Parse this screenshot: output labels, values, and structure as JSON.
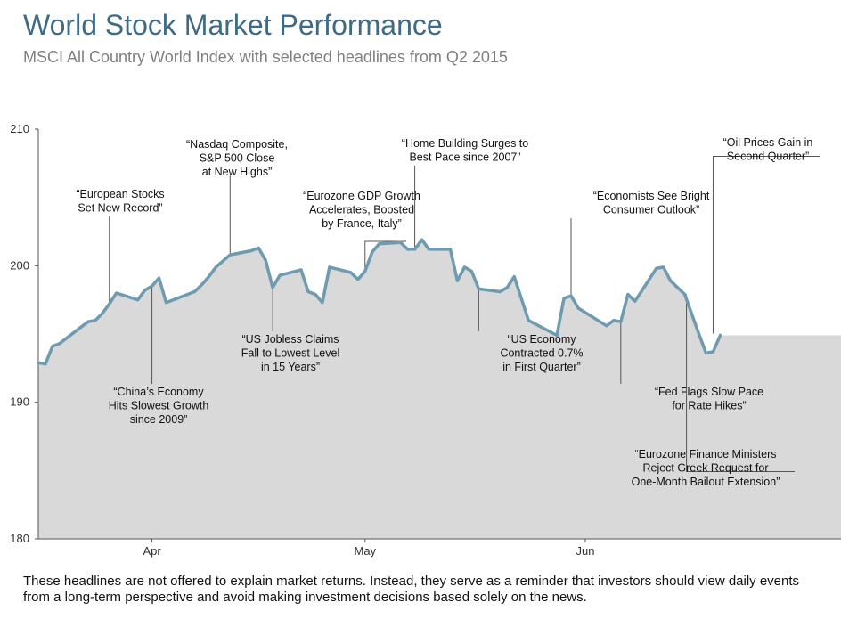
{
  "chart_data": {
    "type": "area",
    "title": "World Stock Market Performance",
    "subtitle": "MSCI All Country World Index with selected headlines from Q2 2015",
    "ylim": [
      180,
      210
    ],
    "yticks": [
      "210",
      "200",
      "190",
      "180"
    ],
    "xlim": [
      "2015-03-16",
      "2015-07-07"
    ],
    "xticks": [
      {
        "label": "Apr",
        "date": "2015-04-01"
      },
      {
        "label": "May",
        "date": "2015-05-01"
      },
      {
        "label": "Jun",
        "date": "2015-06-01"
      }
    ],
    "grid": false,
    "legend": "none",
    "colors": {
      "line": "#6e9bb0",
      "fill": "#d9d9d9",
      "axis": "#555555"
    },
    "series": [
      {
        "points": [
          [
            "2015-03-16",
            192.9
          ],
          [
            "2015-03-17",
            192.8
          ],
          [
            "2015-03-18",
            194.1
          ],
          [
            "2015-03-19",
            194.3
          ],
          [
            "2015-03-23",
            195.9
          ],
          [
            "2015-03-24",
            196.0
          ],
          [
            "2015-03-25",
            196.5
          ],
          [
            "2015-03-26",
            197.2
          ],
          [
            "2015-03-27",
            198.0
          ],
          [
            "2015-03-30",
            197.5
          ],
          [
            "2015-03-31",
            198.2
          ],
          [
            "2015-04-01",
            198.5
          ],
          [
            "2015-04-02",
            199.1
          ],
          [
            "2015-04-03",
            197.3
          ],
          [
            "2015-04-07",
            198.1
          ],
          [
            "2015-04-08",
            198.6
          ],
          [
            "2015-04-09",
            199.2
          ],
          [
            "2015-04-10",
            199.9
          ],
          [
            "2015-04-12",
            200.8
          ],
          [
            "2015-04-15",
            201.1
          ],
          [
            "2015-04-16",
            201.3
          ],
          [
            "2015-04-17",
            200.4
          ],
          [
            "2015-04-18",
            198.4
          ],
          [
            "2015-04-19",
            199.3
          ],
          [
            "2015-04-22",
            199.7
          ],
          [
            "2015-04-23",
            198.1
          ],
          [
            "2015-04-24",
            197.9
          ],
          [
            "2015-04-25",
            197.3
          ],
          [
            "2015-04-26",
            199.9
          ],
          [
            "2015-04-29",
            199.5
          ],
          [
            "2015-04-30",
            199.0
          ],
          [
            "2015-05-01",
            199.6
          ],
          [
            "2015-05-02",
            201.0
          ],
          [
            "2015-05-03",
            201.6
          ],
          [
            "2015-05-06",
            201.7
          ],
          [
            "2015-05-07",
            201.2
          ],
          [
            "2015-05-08",
            201.2
          ],
          [
            "2015-05-09",
            201.9
          ],
          [
            "2015-05-10",
            201.2
          ],
          [
            "2015-05-13",
            201.2
          ],
          [
            "2015-05-14",
            198.9
          ],
          [
            "2015-05-15",
            199.9
          ],
          [
            "2015-05-16",
            199.6
          ],
          [
            "2015-05-17",
            198.3
          ],
          [
            "2015-05-20",
            198.1
          ],
          [
            "2015-05-21",
            198.4
          ],
          [
            "2015-05-22",
            199.2
          ],
          [
            "2015-05-24",
            196.0
          ],
          [
            "2015-05-28",
            194.9
          ],
          [
            "2015-05-29",
            197.6
          ],
          [
            "2015-05-30",
            197.8
          ],
          [
            "2015-05-31",
            196.9
          ],
          [
            "2015-06-04",
            195.6
          ],
          [
            "2015-06-05",
            196.0
          ],
          [
            "2015-06-06",
            195.9
          ],
          [
            "2015-06-07",
            197.9
          ],
          [
            "2015-06-08",
            197.4
          ],
          [
            "2015-06-11",
            199.8
          ],
          [
            "2015-06-12",
            199.9
          ],
          [
            "2015-06-13",
            198.9
          ],
          [
            "2015-06-15",
            197.9
          ],
          [
            "2015-06-17",
            195.0
          ],
          [
            "2015-06-18",
            193.6
          ],
          [
            "2015-06-19",
            193.7
          ],
          [
            "2015-06-20",
            194.9
          ]
        ]
      }
    ],
    "annotations": [
      {
        "lines": [
          "“European Stocks",
          "Set New Record”"
        ],
        "date": "2015-03-26",
        "value": 197.2,
        "anchor": "below-text",
        "textX": 135,
        "textY": 222,
        "lineTop": 243
      },
      {
        "lines": [
          "“China’s Economy",
          "Hits Slowest Growth",
          "since 2009”"
        ],
        "date": "2015-04-01",
        "value": 198.5,
        "anchor": "above-text",
        "textX": 178,
        "textY": 444
      },
      {
        "lines": [
          "“Nasdaq Composite,",
          "S&P 500 Close",
          "at New Highs”"
        ],
        "date": "2015-04-12",
        "value": 200.8,
        "anchor": "below-text",
        "textX": 266,
        "textY": 166,
        "lineTop": 196
      },
      {
        "lines": [
          "“US Jobless Claims",
          "Fall to Lowest Level",
          "in 15 Years”"
        ],
        "date": "2015-04-18",
        "value": 198.4,
        "anchor": "above-text",
        "textX": 326,
        "textY": 385
      },
      {
        "lines": [
          "“Eurozone GDP Growth",
          "Accelerates, Boosted",
          "by France, Italy”"
        ],
        "date": "2015-05-01",
        "value": 199.6,
        "anchor": "elbow",
        "textX": 406,
        "textY": 224
      },
      {
        "lines": [
          "“Home Building Surges to",
          "Best Pace since 2007”"
        ],
        "date": "2015-05-08",
        "value": 201.2,
        "anchor": "below-text",
        "textX": 522,
        "textY": 165,
        "lineTop": 186
      },
      {
        "lines": [
          "“US Economy",
          "Contracted 0.7%",
          "in First Quarter”"
        ],
        "date": "2015-05-17",
        "value": 198.3,
        "anchor": "above-text",
        "textX": 608,
        "textY": 385
      },
      {
        "lines": [
          "“Economists See Bright",
          "Consumer Outlook”"
        ],
        "date": "2015-05-30",
        "value": 197.8,
        "anchor": "below-text",
        "textX": 731,
        "textY": 224,
        "lineTop": 245
      },
      {
        "lines": [
          "“Fed Flags Slow Pace",
          "for Rate Hikes”"
        ],
        "date": "2015-06-06",
        "value": 195.9,
        "anchor": "above-text",
        "textX": 796,
        "textY": 444
      },
      {
        "lines": [
          "“Eurozone Finance Ministers",
          "Reject Greek Request for",
          "One-Month Bailout Extension”"
        ],
        "date": "2015-06-15",
        "value": 197.9,
        "anchor": "elbow-right",
        "textX": 792,
        "textY": 514
      },
      {
        "lines": [
          "“Oil Prices Gain in",
          "Second Quarter”"
        ],
        "date": "2015-06-20",
        "value": 194.9,
        "anchor": "elbow-top",
        "textX": 862,
        "textY": 164
      }
    ]
  },
  "footnote": "These headlines are not offered to explain market returns. Instead, they serve as a reminder that investors should view daily events from a long-term perspective and avoid making investment  decisions based solely on the news."
}
